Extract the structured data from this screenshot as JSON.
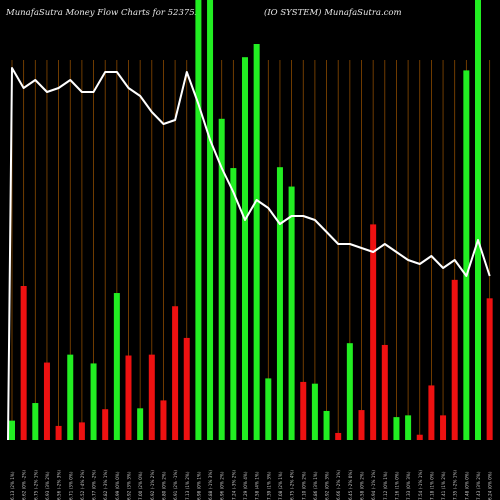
{
  "header": {
    "left": "MunafaSutra  Money Flow  Charts for 523752",
    "right": "(IO SYSTEM) MunafaSutra.com"
  },
  "colors": {
    "background": "#000000",
    "up": "#22ee22",
    "down": "#ee1111",
    "grid": "#8a4a00",
    "line": "#ffffff",
    "label": "#cccccc"
  },
  "chart_data": {
    "type": "bar",
    "title": "",
    "xlabel": "",
    "ylabel": "",
    "categories": [
      "08 Fri Feb 2025",
      "07 Thu Feb 2025",
      "06 Wed Feb 2025",
      "05 Wed Feb 2025",
      "04 Tue Feb 2025",
      "03 Mon Feb 2025",
      "31 Fri Jan 2025",
      "30 Thu Jan 2025",
      "29 Wed Jan 2025",
      "28 Tue Jan 2025",
      "27 Mon Jan 2025",
      "24 Fri Jan 2025",
      "23 Thu Jan 2025",
      "22 Wed Jan 2025",
      "21 Tue Jan 2025",
      "20 Mon Jan 2025",
      "17 Fri Jan 2025",
      "16 Thu Jan 2025",
      "15 Wed Jan 2025",
      "14 Tue Jan 2025",
      "13 Mon Jan 2025",
      "10 Fri Jan 2025",
      "09 Thu Jan 2025",
      "08 Wed Jan 2025",
      "07 Tue Jan 2025",
      "06 Mon Jan 2025",
      "03 Fri Jan 2025",
      "02 Thu Jan 2025",
      "01 Wed Jan 2025",
      "31 Tue Dec 2024",
      "30 Mon Dec 2024",
      "27 Fri Dec 2024",
      "26 Thu Dec 2024",
      "24 Tue Dec 2024",
      "23 Mon Dec 2024",
      "20 Fri Dec 2024",
      "19 Thu Dec 2024",
      "18 Wed Dec 2024",
      "17 Tue Dec 2024",
      "16 Mon Dec 2024",
      "13 Fri Dec 2024",
      "12 Thu Dec 2024"
    ],
    "x_labels": [
      "6.13 (2% 1%)",
      "6.62 (0% -2%)",
      "6.75 (-2% 1%)",
      "6.93 (3% 2%)",
      "6.56 (-2% 3%)",
      "6.71 (3% 0%)",
      "6.52 (-4% 2%)",
      "6.77 (0% -2%)",
      "6.82 (-3% 1%)",
      "6.99 (0% 0%)",
      "6.92 (3% 3%)",
      "7.00 (2% 0%)",
      "6.92 (-1% 2%)",
      "6.80 (0% 2%)",
      "6.91 (2% -1%)",
      "7.13 (1% 2%)",
      "6.98 (0% 1%)",
      "6.88 (-1% 3%)",
      "6.96 (0% 2%)",
      "7.24 (-3% 2%)",
      "7.29 (0% 4%)",
      "7.58 (4% 1%)",
      "7.39 (1% 3%)",
      "7.08 (2% 1%)",
      "6.75 (-2% 4%)",
      "7.10 (0% 2%)",
      "6.86 (3% 1%)",
      "6.92 (0% 3%)",
      "6.66 (-2% 1%)",
      "6.45 (-2% 0%)",
      "6.58 (0% 2%)",
      "6.94 (-1% 1%)",
      "7.12 (0% 1%)",
      "7.16 (1% 0%)",
      "7.33 (0% 3%)",
      "7.54 (-1% 1%)",
      "7.18 (1% 0%)",
      "7.41 (1% 2%)",
      "7.35 (-2% 1%)",
      "7.48 (0% 0%)",
      "7.43 (3% 2%)",
      "6.24 (0% 0%)"
    ],
    "bar_colors": [
      "green",
      "red",
      "green",
      "red",
      "red",
      "green",
      "red",
      "green",
      "red",
      "green",
      "red",
      "green",
      "red",
      "red",
      "red",
      "red",
      "green",
      "green",
      "green",
      "green",
      "green",
      "green",
      "green",
      "green",
      "green",
      "red",
      "green",
      "green",
      "red",
      "green",
      "red",
      "red",
      "red",
      "green",
      "green",
      "red",
      "red",
      "red",
      "red",
      "green",
      "green",
      "red"
    ],
    "values": [
      22,
      175,
      42,
      88,
      16,
      97,
      20,
      87,
      35,
      167,
      96,
      36,
      97,
      45,
      152,
      116,
      500,
      500,
      365,
      309,
      435,
      450,
      70,
      310,
      288,
      66,
      64,
      33,
      8,
      110,
      34,
      245,
      108,
      26,
      28,
      6,
      62,
      28,
      182,
      420,
      500,
      161
    ],
    "line_values": [
      93,
      88,
      90,
      87,
      88,
      90,
      87,
      87,
      92,
      92,
      88,
      86,
      82,
      79,
      80,
      92,
      84,
      75,
      68,
      62,
      55,
      60,
      58,
      54,
      56,
      56,
      55,
      52,
      49,
      49,
      48,
      47,
      49,
      47,
      45,
      44,
      46,
      43,
      45,
      41,
      50,
      41
    ],
    "ylim": [
      0,
      500
    ],
    "line_ylim": [
      0,
      100
    ],
    "grid": true
  }
}
